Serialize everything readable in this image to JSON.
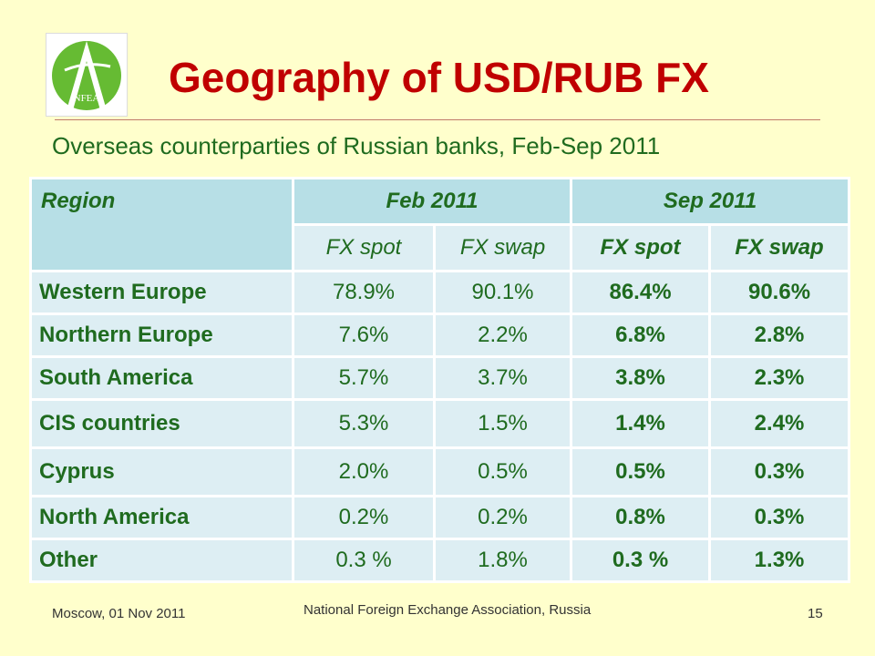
{
  "title": "Geography of USD/RUB FX",
  "subtitle": "Overseas counterparties of Russian banks, Feb-Sep 2011",
  "logo": {
    "text": "NFEA",
    "colors": {
      "circle": "#66bb33",
      "mark": "#ffffff"
    }
  },
  "table": {
    "region_header": "Region",
    "groups": [
      "Feb 2011",
      "Sep 2011"
    ],
    "subheaders": [
      "FX spot",
      "FX swap",
      "FX spot",
      "FX swap"
    ],
    "rows": [
      {
        "region": "Western Europe",
        "values": [
          "78.9%",
          "90.1%",
          "86.4%",
          "90.6%"
        ]
      },
      {
        "region": "Northern Europe",
        "values": [
          "7.6%",
          "2.2%",
          "6.8%",
          "2.8%"
        ]
      },
      {
        "region": "South America",
        "values": [
          "5.7%",
          "3.7%",
          "3.8%",
          "2.3%"
        ]
      },
      {
        "region": "CIS countries",
        "values": [
          "5.3%",
          "1.5%",
          "1.4%",
          "2.4%"
        ]
      },
      {
        "region": "Cyprus",
        "values": [
          "2.0%",
          "0.5%",
          "0.5%",
          "0.3%"
        ]
      },
      {
        "region": "North America",
        "values": [
          "0.2%",
          "0.2%",
          "0.8%",
          "0.3%"
        ]
      },
      {
        "region": "Other",
        "values": [
          "0.3 %",
          "1.8%",
          "0.3 %",
          "1.3%"
        ]
      }
    ]
  },
  "footer": {
    "left": "Moscow, 01 Nov 2011",
    "center": "National Foreign Exchange Association, Russia",
    "page": "15"
  },
  "colors": {
    "background": "#ffffcc",
    "title": "#c00000",
    "text": "#1f6b1f",
    "header_fill": "#b7dfe6",
    "cell_fill": "#ddeef3"
  }
}
